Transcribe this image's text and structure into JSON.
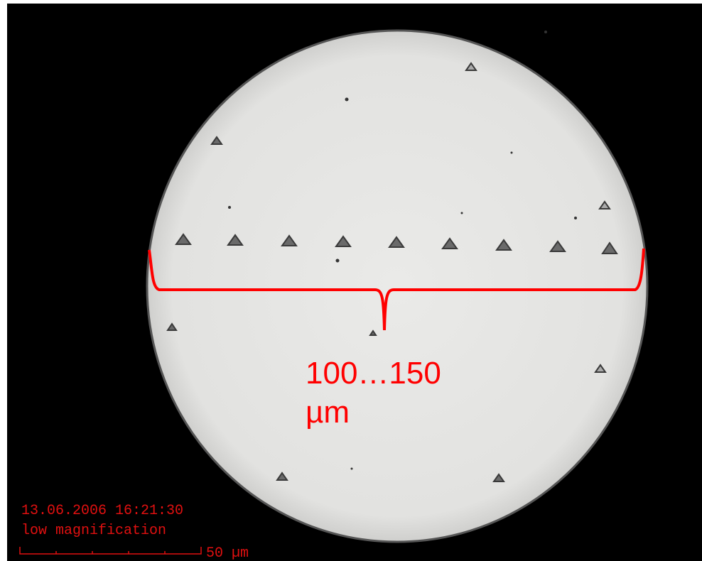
{
  "annotation": {
    "range": "100…150",
    "unit": "µm"
  },
  "overlay": {
    "timestamp": "13.06.2006 16:21:30",
    "mode": "low magnification",
    "scale_label": "50 µm"
  }
}
